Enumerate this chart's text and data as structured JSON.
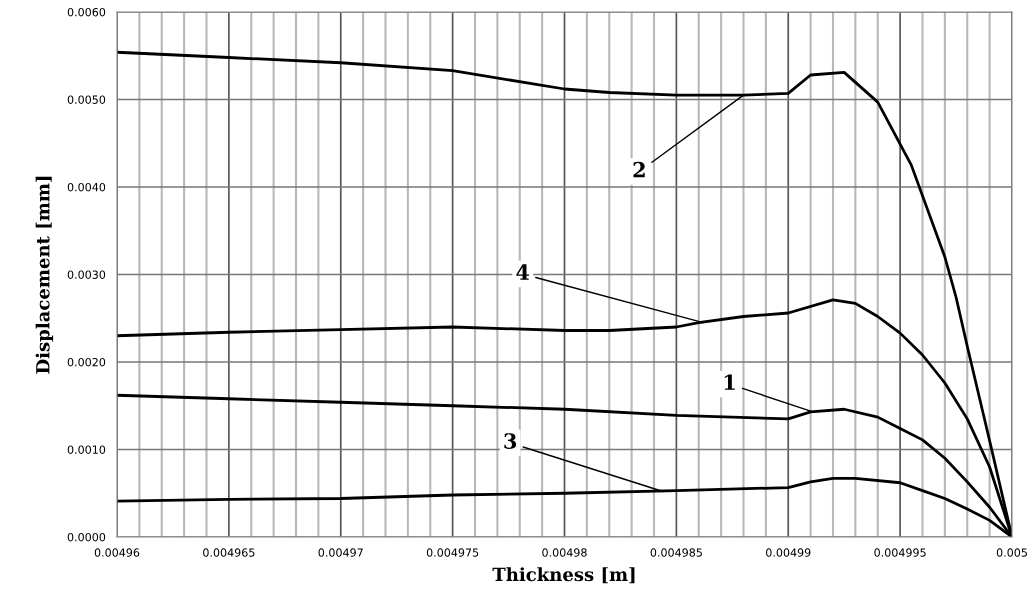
{
  "chart_data": {
    "type": "line",
    "xlabel": "Thickness [m]",
    "ylabel": "Displacement [mm]",
    "xlim": [
      0.00496,
      0.005
    ],
    "ylim": [
      0,
      0.006
    ],
    "xticks": [
      0.00496,
      {
        "value": 0.004961,
        "label": null
      },
      {
        "value": 0.004962,
        "label": null
      },
      {
        "value": 0.004963,
        "label": null
      },
      {
        "value": 0.004964,
        "label": null
      },
      0.004965,
      {
        "value": 0.004966,
        "label": null
      },
      {
        "value": 0.004967,
        "label": null
      },
      {
        "value": 0.004968,
        "label": null
      },
      {
        "value": 0.004969,
        "label": null
      },
      0.00497,
      {
        "value": 0.004971,
        "label": null
      },
      {
        "value": 0.004972,
        "label": null
      },
      {
        "value": 0.004973,
        "label": null
      },
      {
        "value": 0.004974,
        "label": null
      },
      0.004975,
      {
        "value": 0.004976,
        "label": null
      },
      {
        "value": 0.004977,
        "label": null
      },
      {
        "value": 0.004978,
        "label": null
      },
      {
        "value": 0.004979,
        "label": null
      },
      0.00498,
      {
        "value": 0.004981,
        "label": null
      },
      {
        "value": 0.004982,
        "label": null
      },
      {
        "value": 0.004983,
        "label": null
      },
      {
        "value": 0.004984,
        "label": null
      },
      0.004985,
      {
        "value": 0.004986,
        "label": null
      },
      {
        "value": 0.004987,
        "label": null
      },
      {
        "value": 0.004988,
        "label": null
      },
      {
        "value": 0.004989,
        "label": null
      },
      0.00499,
      {
        "value": 0.004991,
        "label": null
      },
      {
        "value": 0.004992,
        "label": null
      },
      {
        "value": 0.004993,
        "label": null
      },
      {
        "value": 0.004994,
        "label": null
      },
      0.004995,
      {
        "value": 0.004996,
        "label": null
      },
      {
        "value": 0.004997,
        "label": null
      },
      {
        "value": 0.004998,
        "label": null
      },
      {
        "value": 0.004999,
        "label": null
      },
      0.005
    ],
    "yticks": [
      {
        "value": 0,
        "label": "0.0000"
      },
      {
        "value": 0.001,
        "label": "0.0010"
      },
      {
        "value": 0.002,
        "label": "0.0020"
      },
      {
        "value": 0.003,
        "label": "0.0030"
      },
      {
        "value": 0.004,
        "label": "0.0040"
      },
      {
        "value": 0.005,
        "label": "0.0050"
      },
      {
        "value": 0.006,
        "label": "0.0060"
      }
    ],
    "grid": true,
    "marker": "none",
    "line_style": "solid",
    "series": [
      {
        "color": "#000000",
        "x": [
          0.00496,
          0.004965,
          0.00497,
          0.004975,
          0.00498,
          0.004985,
          0.00499,
          0.004991,
          0.0049925,
          0.004994,
          0.004995,
          0.004996,
          0.004997,
          0.004998,
          0.004999,
          0.005
        ],
        "values": [
          0.00162,
          0.00158,
          0.00154,
          0.0015,
          0.00146,
          0.00139,
          0.00135,
          0.00143,
          0.00146,
          0.00137,
          0.00124,
          0.00111,
          0.0009,
          0.00063,
          0.00034,
          0
        ]
      },
      {
        "color": "#000000",
        "x": [
          0.00496,
          0.004965,
          0.00497,
          0.004975,
          0.00498,
          0.004982,
          0.004985,
          0.004988,
          0.00499,
          0.004991,
          0.0049925,
          0.004994,
          0.0049955,
          0.004997,
          0.0049975,
          0.004998,
          0.004999,
          0.005
        ],
        "values": [
          0.00554,
          0.00548,
          0.00542,
          0.00533,
          0.00512,
          0.00508,
          0.00505,
          0.00505,
          0.00507,
          0.00528,
          0.00531,
          0.00497,
          0.00425,
          0.0032,
          0.00274,
          0.00218,
          0.0011,
          0
        ]
      },
      {
        "color": "#000000",
        "x": [
          0.00496,
          0.004965,
          0.00497,
          0.004975,
          0.00498,
          0.004985,
          0.00499,
          0.004991,
          0.004992,
          0.004993,
          0.004995,
          0.004996,
          0.004997,
          0.004998,
          0.004999,
          0.005
        ],
        "values": [
          0.00041,
          0.00043,
          0.00044,
          0.00048,
          0.0005,
          0.00053,
          0.000565,
          0.00063,
          0.00067,
          0.00067,
          0.00062,
          0.00053,
          0.00044,
          0.00032,
          0.00019,
          0
        ]
      },
      {
        "color": "#000000",
        "x": [
          0.00496,
          0.004965,
          0.00497,
          0.004975,
          0.00498,
          0.004982,
          0.004985,
          0.004986,
          0.004988,
          0.00499,
          0.004992,
          0.004993,
          0.004994,
          0.004995,
          0.004996,
          0.004997,
          0.004998,
          0.004999,
          0.005
        ],
        "values": [
          0.0023,
          0.00234,
          0.00237,
          0.0024,
          0.00236,
          0.00236,
          0.0024,
          0.00245,
          0.00252,
          0.00256,
          0.00271,
          0.00267,
          0.00252,
          0.00233,
          0.00208,
          0.00176,
          0.00135,
          0.0008,
          0
        ]
      }
    ],
    "annotations": [
      {
        "text": "2",
        "x": 0.004988,
        "y": 0.00505
      },
      {
        "text": "4",
        "x": 0.0049862,
        "y": 0.00245
      },
      {
        "text": "1",
        "x": 0.0049911,
        "y": 0.00143
      },
      {
        "text": "3",
        "x": 0.0049844,
        "y": 0.00052
      }
    ]
  }
}
